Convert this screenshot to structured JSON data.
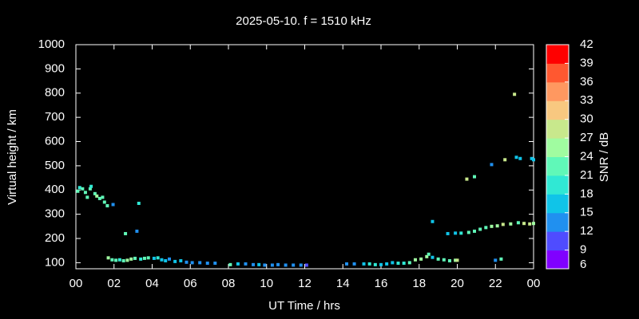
{
  "chart_data": {
    "type": "scatter",
    "title": "2025-05-10. f = 1510 kHz",
    "x_label": "UT Time / hrs",
    "y_label": "Virtual height / km",
    "colorbar_label": "SNR / dB",
    "xlim": [
      0,
      24
    ],
    "ylim": [
      75,
      1000
    ],
    "xticks": [
      {
        "value": 0,
        "label": "00"
      },
      {
        "value": 2,
        "label": "02"
      },
      {
        "value": 4,
        "label": "04"
      },
      {
        "value": 6,
        "label": "06"
      },
      {
        "value": 8,
        "label": "08"
      },
      10,
      12,
      14,
      16,
      18,
      20,
      22,
      {
        "value": 24,
        "label": "00"
      }
    ],
    "yticks": [
      100,
      200,
      300,
      400,
      500,
      600,
      700,
      800,
      900,
      1000
    ],
    "clim": [
      6,
      42
    ],
    "cticks": [
      6,
      9,
      12,
      15,
      18,
      21,
      24,
      27,
      30,
      33,
      36,
      39,
      42
    ],
    "colorbar_colors": [
      "#8000ff",
      "#4f4cff",
      "#2090f0",
      "#10c4e8",
      "#30e8d4",
      "#60f8b8",
      "#a0fca0",
      "#c8e88c",
      "#f8c880",
      "#ff9860",
      "#ff5830",
      "#ff0000"
    ],
    "x": [
      0.1,
      0.2,
      0.35,
      0.5,
      0.6,
      0.75,
      0.8,
      1.0,
      1.1,
      1.25,
      1.4,
      1.5,
      1.65,
      1.95,
      2.6,
      3.2,
      3.3,
      1.7,
      1.9,
      2.1,
      2.3,
      2.5,
      2.7,
      2.9,
      3.1,
      3.4,
      3.6,
      3.8,
      4.1,
      4.3,
      4.5,
      4.7,
      4.9,
      5.2,
      5.5,
      5.8,
      6.1,
      6.5,
      6.9,
      7.3,
      8.1,
      8.5,
      8.9,
      9.3,
      9.6,
      9.9,
      10.3,
      10.6,
      11.0,
      11.4,
      11.8,
      12.1,
      14.2,
      14.6,
      15.1,
      15.4,
      15.7,
      16.0,
      16.3,
      16.6,
      16.9,
      17.2,
      17.5,
      17.8,
      18.1,
      18.4,
      18.5,
      18.7,
      19.0,
      19.3,
      19.6,
      19.9,
      20.0,
      18.7,
      19.5,
      19.9,
      20.2,
      20.6,
      20.9,
      21.2,
      21.5,
      21.8,
      22.1,
      22.4,
      22.8,
      23.2,
      23.5,
      23.8,
      24.0,
      22.0,
      22.3,
      20.5,
      20.9,
      21.8,
      22.5,
      23.1,
      23.3,
      23.9,
      24.0,
      23.0
    ],
    "y": [
      395,
      410,
      405,
      390,
      370,
      405,
      415,
      385,
      375,
      365,
      370,
      350,
      335,
      340,
      220,
      230,
      345,
      120,
      112,
      110,
      112,
      108,
      110,
      115,
      118,
      115,
      118,
      120,
      118,
      120,
      112,
      108,
      115,
      105,
      108,
      102,
      100,
      100,
      98,
      98,
      92,
      95,
      95,
      92,
      92,
      90,
      90,
      92,
      90,
      90,
      90,
      90,
      95,
      95,
      95,
      95,
      92,
      92,
      95,
      100,
      98,
      98,
      100,
      112,
      115,
      125,
      135,
      122,
      115,
      112,
      108,
      110,
      110,
      270,
      220,
      222,
      222,
      225,
      230,
      238,
      245,
      250,
      252,
      258,
      260,
      265,
      262,
      260,
      262,
      110,
      115,
      445,
      455,
      505,
      525,
      535,
      530,
      530,
      525,
      795
    ],
    "snr": [
      21,
      18,
      21,
      21,
      21,
      21,
      18,
      21,
      24,
      21,
      21,
      21,
      21,
      12,
      21,
      12,
      18,
      24,
      21,
      21,
      18,
      21,
      24,
      24,
      21,
      18,
      21,
      21,
      15,
      18,
      15,
      15,
      12,
      15,
      15,
      12,
      12,
      12,
      12,
      12,
      21,
      15,
      12,
      12,
      15,
      12,
      12,
      12,
      12,
      12,
      12,
      9,
      12,
      12,
      15,
      18,
      18,
      15,
      15,
      15,
      18,
      18,
      21,
      24,
      24,
      24,
      21,
      15,
      21,
      21,
      21,
      24,
      27,
      15,
      15,
      15,
      18,
      21,
      21,
      21,
      21,
      24,
      24,
      27,
      24,
      21,
      27,
      27,
      24,
      12,
      21,
      27,
      21,
      12,
      27,
      15,
      15,
      15,
      15,
      27
    ]
  }
}
